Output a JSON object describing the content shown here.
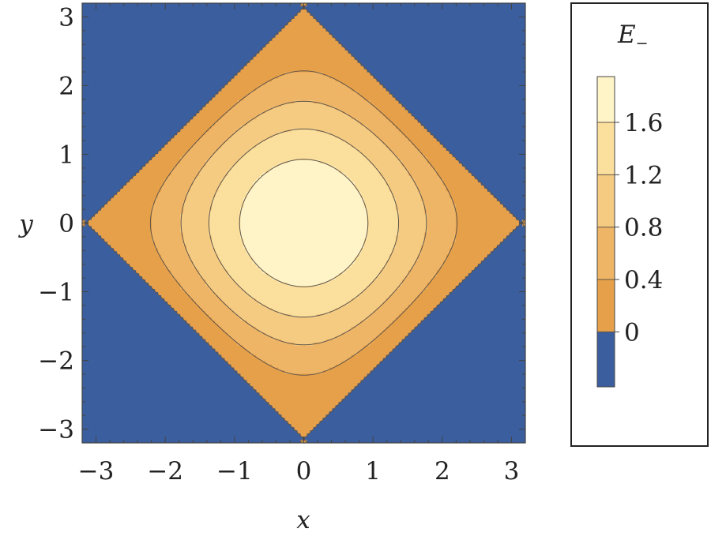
{
  "chart_data": {
    "type": "contour",
    "function": "E_- = cos(x) + cos(y), clipped below 0",
    "x": {
      "label": "x",
      "range": [
        -3.2,
        3.2
      ],
      "ticks": [
        -3,
        -2,
        -1,
        0,
        1,
        2,
        3
      ],
      "tick_labels": [
        "−3",
        "−2",
        "−1",
        "0",
        "1",
        "2",
        "3"
      ]
    },
    "y": {
      "label": "y",
      "range": [
        -3.2,
        3.2
      ],
      "ticks": [
        -3,
        -2,
        -1,
        0,
        1,
        2,
        3
      ],
      "tick_labels": [
        "−3",
        "−2",
        "−1",
        "0",
        "1",
        "2",
        "3"
      ]
    },
    "contour_levels": [
      0,
      0.4,
      0.8,
      1.2,
      1.6
    ],
    "fill_colors": [
      "#3b5e9e",
      "#e6a04a",
      "#efb566",
      "#f5cb82",
      "#fbdf9c",
      "#fff4c8"
    ],
    "line_color": "#5f5448",
    "legend": {
      "title_main": "E",
      "title_sub": "−",
      "value_range": [
        -0.42,
        1.95
      ],
      "ticks": [
        0,
        0.4,
        0.8,
        1.2,
        1.6
      ],
      "tick_labels": [
        "0",
        "0.4",
        "0.8",
        "1.2",
        "1.6"
      ]
    }
  }
}
